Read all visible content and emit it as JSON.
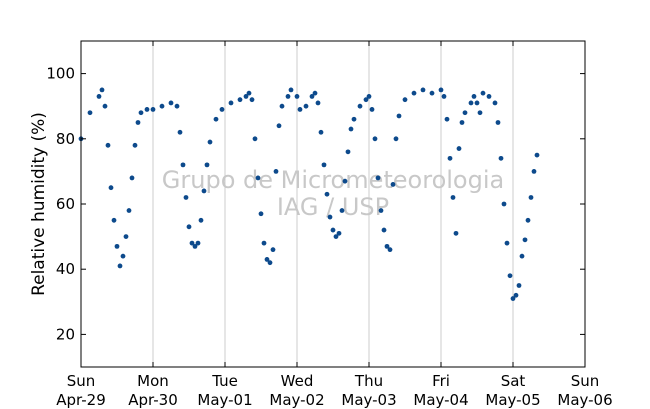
{
  "chart_data": {
    "type": "scatter",
    "title": "",
    "xlabel": "",
    "ylabel": "Relative humidity (%)",
    "ylim": [
      10,
      110
    ],
    "xlim": [
      "2013-04-29T00:00",
      "2013-05-06T00:00"
    ],
    "yticks": [
      20,
      40,
      60,
      80,
      100
    ],
    "xticks": [
      {
        "day": "Sun",
        "date": "Apr-29",
        "x": "2013-04-29T00:00"
      },
      {
        "day": "Mon",
        "date": "Apr-30",
        "x": "2013-04-30T00:00"
      },
      {
        "day": "Tue",
        "date": "May-01",
        "x": "2013-05-01T00:00"
      },
      {
        "day": "Wed",
        "date": "May-02",
        "x": "2013-05-02T00:00"
      },
      {
        "day": "Thu",
        "date": "May-03",
        "x": "2013-05-03T00:00"
      },
      {
        "day": "Fri",
        "date": "May-04",
        "x": "2013-05-04T00:00"
      },
      {
        "day": "Sat",
        "date": "May-05",
        "x": "2013-05-05T00:00"
      },
      {
        "day": "Sun",
        "date": "May-06",
        "x": "2013-05-06T00:00"
      }
    ],
    "grid": "vertical",
    "marker_color": "#0d4a8c",
    "watermark": [
      "Grupo de Micrometeorologia",
      "IAG / USP"
    ],
    "series": [
      {
        "values": [
          [
            "2013-04-29T00:00",
            80
          ],
          [
            "2013-04-29T03:00",
            88
          ],
          [
            "2013-04-29T06:00",
            93
          ],
          [
            "2013-04-29T07:00",
            95
          ],
          [
            "2013-04-29T08:00",
            90
          ],
          [
            "2013-04-29T09:00",
            78
          ],
          [
            "2013-04-29T10:00",
            65
          ],
          [
            "2013-04-29T11:00",
            55
          ],
          [
            "2013-04-29T12:00",
            47
          ],
          [
            "2013-04-29T13:00",
            41
          ],
          [
            "2013-04-29T14:00",
            44
          ],
          [
            "2013-04-29T15:00",
            50
          ],
          [
            "2013-04-29T16:00",
            58
          ],
          [
            "2013-04-29T17:00",
            68
          ],
          [
            "2013-04-29T18:00",
            78
          ],
          [
            "2013-04-29T19:00",
            85
          ],
          [
            "2013-04-29T20:00",
            88
          ],
          [
            "2013-04-29T22:00",
            89
          ],
          [
            "2013-04-30T00:00",
            89
          ],
          [
            "2013-04-30T03:00",
            90
          ],
          [
            "2013-04-30T06:00",
            91
          ],
          [
            "2013-04-30T08:00",
            90
          ],
          [
            "2013-04-30T09:00",
            82
          ],
          [
            "2013-04-30T10:00",
            72
          ],
          [
            "2013-04-30T11:00",
            62
          ],
          [
            "2013-04-30T12:00",
            53
          ],
          [
            "2013-04-30T13:00",
            48
          ],
          [
            "2013-04-30T14:00",
            47
          ],
          [
            "2013-04-30T15:00",
            48
          ],
          [
            "2013-04-30T16:00",
            55
          ],
          [
            "2013-04-30T17:00",
            64
          ],
          [
            "2013-04-30T18:00",
            72
          ],
          [
            "2013-04-30T19:00",
            79
          ],
          [
            "2013-04-30T21:00",
            86
          ],
          [
            "2013-04-30T23:00",
            89
          ],
          [
            "2013-05-01T02:00",
            91
          ],
          [
            "2013-05-01T05:00",
            92
          ],
          [
            "2013-05-01T07:00",
            93
          ],
          [
            "2013-05-01T08:00",
            94
          ],
          [
            "2013-05-01T09:00",
            92
          ],
          [
            "2013-05-01T10:00",
            80
          ],
          [
            "2013-05-01T11:00",
            68
          ],
          [
            "2013-05-01T12:00",
            57
          ],
          [
            "2013-05-01T13:00",
            48
          ],
          [
            "2013-05-01T14:00",
            43
          ],
          [
            "2013-05-01T15:00",
            42
          ],
          [
            "2013-05-01T16:00",
            46
          ],
          [
            "2013-05-01T17:00",
            70
          ],
          [
            "2013-05-01T18:00",
            84
          ],
          [
            "2013-05-01T19:00",
            90
          ],
          [
            "2013-05-01T21:00",
            93
          ],
          [
            "2013-05-01T22:00",
            95
          ],
          [
            "2013-05-02T00:00",
            93
          ],
          [
            "2013-05-02T01:00",
            89
          ],
          [
            "2013-05-02T03:00",
            90
          ],
          [
            "2013-05-02T05:00",
            93
          ],
          [
            "2013-05-02T06:00",
            94
          ],
          [
            "2013-05-02T07:00",
            91
          ],
          [
            "2013-05-02T08:00",
            82
          ],
          [
            "2013-05-02T09:00",
            72
          ],
          [
            "2013-05-02T10:00",
            63
          ],
          [
            "2013-05-02T11:00",
            56
          ],
          [
            "2013-05-02T12:00",
            52
          ],
          [
            "2013-05-02T13:00",
            50
          ],
          [
            "2013-05-02T14:00",
            51
          ],
          [
            "2013-05-02T15:00",
            58
          ],
          [
            "2013-05-02T16:00",
            67
          ],
          [
            "2013-05-02T17:00",
            76
          ],
          [
            "2013-05-02T18:00",
            83
          ],
          [
            "2013-05-02T19:00",
            86
          ],
          [
            "2013-05-02T21:00",
            90
          ],
          [
            "2013-05-02T23:00",
            92
          ],
          [
            "2013-05-03T00:00",
            93
          ],
          [
            "2013-05-03T01:00",
            89
          ],
          [
            "2013-05-03T02:00",
            80
          ],
          [
            "2013-05-03T03:00",
            68
          ],
          [
            "2013-05-03T04:00",
            58
          ],
          [
            "2013-05-03T05:00",
            52
          ],
          [
            "2013-05-03T06:00",
            47
          ],
          [
            "2013-05-03T07:00",
            46
          ],
          [
            "2013-05-03T08:00",
            66
          ],
          [
            "2013-05-03T09:00",
            80
          ],
          [
            "2013-05-03T10:00",
            87
          ],
          [
            "2013-05-03T12:00",
            92
          ],
          [
            "2013-05-03T15:00",
            94
          ],
          [
            "2013-05-03T18:00",
            95
          ],
          [
            "2013-05-03T21:00",
            94
          ],
          [
            "2013-05-04T00:00",
            95
          ],
          [
            "2013-05-04T01:00",
            93
          ],
          [
            "2013-05-04T02:00",
            86
          ],
          [
            "2013-05-04T03:00",
            74
          ],
          [
            "2013-05-04T04:00",
            62
          ],
          [
            "2013-05-04T05:00",
            51
          ],
          [
            "2013-05-04T06:00",
            77
          ],
          [
            "2013-05-04T07:00",
            85
          ],
          [
            "2013-05-04T08:00",
            88
          ],
          [
            "2013-05-04T10:00",
            91
          ],
          [
            "2013-05-04T11:00",
            93
          ],
          [
            "2013-05-04T12:00",
            91
          ],
          [
            "2013-05-04T13:00",
            88
          ],
          [
            "2013-05-04T14:00",
            94
          ],
          [
            "2013-05-04T16:00",
            93
          ],
          [
            "2013-05-04T18:00",
            91
          ],
          [
            "2013-05-04T19:00",
            85
          ],
          [
            "2013-05-04T20:00",
            74
          ],
          [
            "2013-05-04T21:00",
            60
          ],
          [
            "2013-05-04T22:00",
            48
          ],
          [
            "2013-05-04T23:00",
            38
          ],
          [
            "2013-05-05T00:00",
            31
          ],
          [
            "2013-05-05T01:00",
            32
          ],
          [
            "2013-05-05T02:00",
            35
          ],
          [
            "2013-05-05T03:00",
            44
          ],
          [
            "2013-05-05T04:00",
            49
          ],
          [
            "2013-05-05T05:00",
            55
          ],
          [
            "2013-05-05T06:00",
            62
          ],
          [
            "2013-05-05T07:00",
            70
          ],
          [
            "2013-05-05T08:00",
            75
          ]
        ]
      }
    ]
  }
}
